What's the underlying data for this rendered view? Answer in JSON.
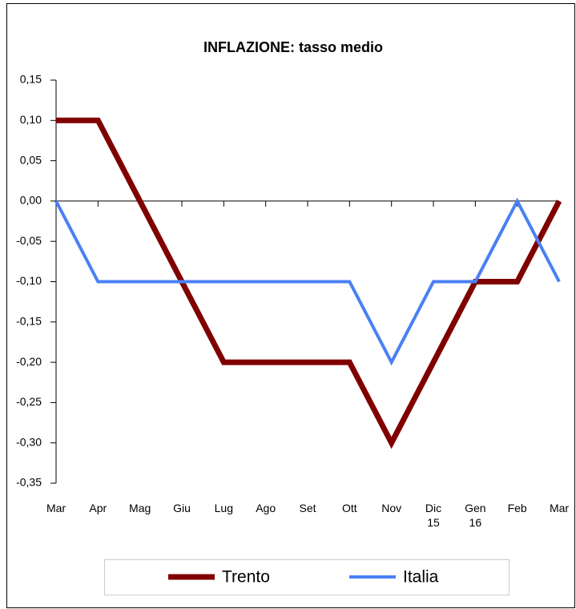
{
  "chart_data": {
    "type": "line",
    "title": "INFLAZIONE: tasso medio",
    "categories": [
      "Mar",
      "Apr",
      "Mag",
      "Giu",
      "Lug",
      "Ago",
      "Set",
      "Ott",
      "Nov",
      "Dic\n15",
      "Gen\n16",
      "Feb",
      "Mar"
    ],
    "series": [
      {
        "name": "Trento",
        "color": "#800000",
        "values": [
          0.1,
          0.1,
          0.0,
          -0.1,
          -0.2,
          -0.2,
          -0.2,
          -0.2,
          -0.3,
          -0.2,
          -0.1,
          -0.1,
          0.0
        ]
      },
      {
        "name": "Italia",
        "color": "#4a80f5",
        "values": [
          0.0,
          -0.1,
          -0.1,
          -0.1,
          -0.1,
          -0.1,
          -0.1,
          -0.1,
          -0.2,
          -0.1,
          -0.1,
          0.0,
          -0.1
        ]
      }
    ],
    "ylim": [
      -0.35,
      0.15
    ],
    "yticks": [
      {
        "value": 0.15,
        "label": "0,15"
      },
      {
        "value": 0.1,
        "label": "0,10"
      },
      {
        "value": 0.05,
        "label": "0,05"
      },
      {
        "value": 0.0,
        "label": "0,00"
      },
      {
        "value": -0.05,
        "label": "-0,05"
      },
      {
        "value": -0.1,
        "label": "-0,10"
      },
      {
        "value": -0.15,
        "label": "-0,15"
      },
      {
        "value": -0.2,
        "label": "-0,20"
      },
      {
        "value": -0.25,
        "label": "-0,25"
      },
      {
        "value": -0.3,
        "label": "-0,30"
      },
      {
        "value": -0.35,
        "label": "-0,35"
      }
    ],
    "grid": false
  }
}
